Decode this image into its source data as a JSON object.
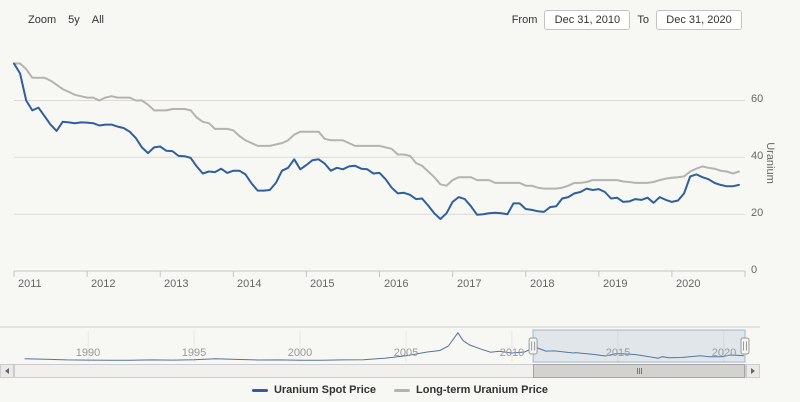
{
  "toolbar": {
    "zoom_label": "Zoom",
    "zoom_buttons": [
      "5y",
      "All"
    ],
    "from_label": "From",
    "from_value": "Dec 31, 2010",
    "to_label": "To",
    "to_value": "Dec 31, 2020"
  },
  "chart_data": {
    "type": "line",
    "x_axis": {
      "range_years": [
        2011,
        2021
      ],
      "tick_labels": [
        "2011",
        "2012",
        "2013",
        "2014",
        "2015",
        "2016",
        "2017",
        "2018",
        "2019",
        "2020"
      ]
    },
    "y_axis": {
      "title": "Uranium",
      "position": "right",
      "range": [
        0,
        76
      ],
      "tick_labels": [
        0,
        20,
        40,
        60
      ],
      "grid": true
    },
    "series": [
      {
        "name": "Long-term Uranium Price",
        "color": "#b5b3b0",
        "x_start": 2011.0,
        "x_step_years": 0.0833333,
        "values": [
          73,
          73,
          71,
          68,
          68,
          68,
          67,
          65.5,
          64,
          63,
          62,
          61.5,
          61,
          61,
          60,
          61,
          61.5,
          61,
          61,
          61,
          60,
          60,
          58.5,
          56.5,
          56.5,
          56.5,
          57,
          57,
          57,
          56.5,
          54,
          52.5,
          52,
          50,
          50,
          50,
          49.5,
          47.5,
          46,
          45,
          44,
          44,
          44,
          44.5,
          45,
          46,
          48,
          49,
          49,
          49,
          49,
          46.5,
          46,
          46,
          46,
          45,
          44,
          44,
          44,
          44,
          44,
          43.5,
          43,
          41,
          41,
          40.5,
          38,
          37,
          35,
          33,
          30.5,
          30,
          32,
          33,
          33,
          33,
          32,
          32,
          32,
          31,
          31,
          31,
          31,
          31,
          30,
          30,
          29.3,
          29,
          29,
          29,
          29.3,
          30,
          31,
          31,
          31.3,
          32,
          32,
          32,
          32,
          32,
          31.5,
          31.3,
          31,
          31,
          31,
          31.3,
          32,
          32.5,
          32.8,
          33,
          33.3,
          35,
          36,
          36.8,
          36.3,
          36,
          35.3,
          35,
          34.3,
          35
        ]
      },
      {
        "name": "Uranium Spot Price",
        "color": "#2f5f9c",
        "x_start": 2011.0,
        "x_step_years": 0.0833333,
        "values": [
          73,
          69.5,
          60,
          56.5,
          57.5,
          54.5,
          51.5,
          49.3,
          52.5,
          52.3,
          52,
          52.3,
          52.2,
          52,
          51.2,
          51.5,
          51.5,
          50.8,
          50.3,
          49,
          46.8,
          43.5,
          41.5,
          43.5,
          43.8,
          42.3,
          42.2,
          40.5,
          40.4,
          39.8,
          36.8,
          34.3,
          35,
          34.8,
          36,
          34.5,
          35.3,
          35.3,
          34,
          30.8,
          28.3,
          28.3,
          28.5,
          31,
          35.3,
          36.3,
          39.3,
          35.8,
          37.3,
          39,
          39.3,
          37.8,
          35.3,
          36.3,
          35.8,
          36.8,
          37,
          36,
          35.8,
          34.3,
          34.5,
          32.3,
          29.3,
          27.3,
          27.5,
          26.8,
          25.3,
          25.5,
          23,
          20.3,
          18.3,
          20.3,
          24.3,
          26,
          25.3,
          22.8,
          19.8,
          20,
          20.3,
          20.5,
          20.3,
          20,
          23.8,
          23.8,
          21.8,
          21.5,
          21,
          20.8,
          22.5,
          22.8,
          25.5,
          26,
          27.3,
          27.8,
          29,
          28.5,
          28.8,
          27.8,
          25.5,
          25.8,
          24.3,
          24.5,
          25.3,
          25,
          25.8,
          24,
          26,
          25,
          24.3,
          24.8,
          27.3,
          33.3,
          34,
          33,
          32.3,
          31,
          30.3,
          29.8,
          29.8,
          30.3
        ]
      }
    ],
    "legend": {
      "position": "bottom",
      "items": [
        "Uranium Spot Price",
        "Long-term Uranium Price"
      ]
    },
    "navigator": {
      "x_range_years": [
        1986.5,
        2021
      ],
      "tick_years": [
        1990,
        1995,
        2000,
        2005,
        2010,
        2015,
        2020
      ],
      "tick_labels": [
        "1990",
        "1995",
        "2000",
        "2005",
        "2010",
        "2015",
        "2020"
      ],
      "y_range": [
        0,
        150
      ],
      "selection_years": [
        2011,
        2021
      ],
      "selection_color": "#5b84b8",
      "points": [
        [
          1987,
          15
        ],
        [
          1988,
          13
        ],
        [
          1989,
          10
        ],
        [
          1990,
          9
        ],
        [
          1991,
          8.5
        ],
        [
          1992,
          8
        ],
        [
          1993,
          10
        ],
        [
          1994,
          9
        ],
        [
          1995,
          11
        ],
        [
          1996,
          15
        ],
        [
          1997,
          12
        ],
        [
          1998,
          9.5
        ],
        [
          1999,
          10
        ],
        [
          2000,
          8
        ],
        [
          2001,
          8.5
        ],
        [
          2002,
          10
        ],
        [
          2003,
          11
        ],
        [
          2004,
          18
        ],
        [
          2005,
          29
        ],
        [
          2006,
          47
        ],
        [
          2006.6,
          54
        ],
        [
          2007,
          75
        ],
        [
          2007.45,
          137
        ],
        [
          2007.7,
          100
        ],
        [
          2008,
          80
        ],
        [
          2008.5,
          62
        ],
        [
          2009,
          46
        ],
        [
          2009.4,
          50
        ],
        [
          2010,
          42
        ],
        [
          2010.6,
          47
        ],
        [
          2011.1,
          70
        ],
        [
          2011.6,
          51
        ],
        [
          2012,
          52
        ],
        [
          2012.9,
          42
        ],
        [
          2013,
          44
        ],
        [
          2013.9,
          35
        ],
        [
          2014.4,
          28
        ],
        [
          2014.9,
          39
        ],
        [
          2015.2,
          39
        ],
        [
          2015.9,
          34
        ],
        [
          2016.9,
          18
        ],
        [
          2017.1,
          25
        ],
        [
          2017.4,
          20
        ],
        [
          2018,
          21
        ],
        [
          2018.9,
          29
        ],
        [
          2019.3,
          25
        ],
        [
          2019.9,
          25
        ],
        [
          2020.3,
          33
        ],
        [
          2020.95,
          30
        ]
      ]
    }
  }
}
